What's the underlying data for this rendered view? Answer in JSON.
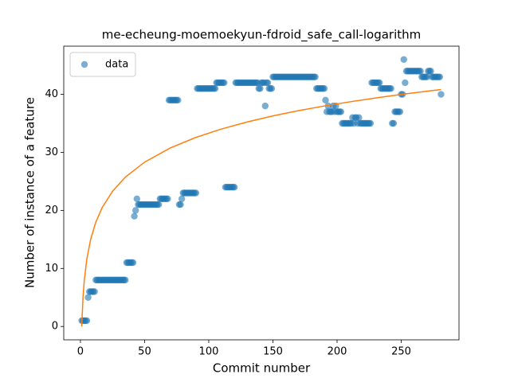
{
  "chart_data": {
    "type": "scatter",
    "title": "me-echeung-moemoekyun-fdroid_safe_call-logarithm",
    "x_label": "Commit number",
    "y_label": "Number of instance of a feature",
    "xlim": [
      -13,
      295
    ],
    "ylim": [
      -2.3,
      48.3
    ],
    "xticks": [
      0,
      50,
      100,
      150,
      200,
      250
    ],
    "yticks": [
      0,
      10,
      20,
      30,
      40
    ],
    "legend": "upper left",
    "series": [
      {
        "name": "data",
        "color": "#1f77b4",
        "type": "scatter",
        "x": [
          1,
          2,
          3,
          4,
          5,
          6,
          7,
          8,
          9,
          10,
          11,
          12,
          13,
          14,
          15,
          16,
          17,
          18,
          19,
          20,
          21,
          22,
          23,
          24,
          25,
          26,
          27,
          28,
          29,
          30,
          31,
          32,
          33,
          34,
          35,
          36,
          37,
          38,
          39,
          40,
          41,
          42,
          43,
          44,
          45,
          46,
          47,
          48,
          49,
          50,
          51,
          52,
          53,
          54,
          55,
          56,
          57,
          58,
          59,
          60,
          61,
          62,
          63,
          64,
          65,
          66,
          67,
          68,
          69,
          70,
          71,
          72,
          73,
          74,
          75,
          76,
          77,
          78,
          79,
          80,
          81,
          82,
          83,
          84,
          85,
          86,
          87,
          88,
          89,
          90,
          91,
          92,
          93,
          94,
          95,
          96,
          97,
          98,
          99,
          100,
          101,
          102,
          103,
          104,
          105,
          106,
          107,
          108,
          109,
          110,
          111,
          112,
          113,
          114,
          115,
          116,
          117,
          118,
          119,
          120,
          121,
          122,
          123,
          124,
          125,
          126,
          127,
          128,
          129,
          130,
          131,
          132,
          133,
          134,
          135,
          136,
          137,
          138,
          139,
          140,
          141,
          142,
          143,
          144,
          145,
          146,
          147,
          148,
          149,
          150,
          151,
          152,
          153,
          154,
          155,
          156,
          157,
          158,
          159,
          160,
          161,
          162,
          163,
          164,
          165,
          166,
          167,
          168,
          169,
          170,
          171,
          172,
          173,
          174,
          175,
          176,
          177,
          178,
          179,
          180,
          181,
          182,
          183,
          184,
          185,
          186,
          187,
          188,
          189,
          190,
          191,
          192,
          193,
          194,
          195,
          196,
          197,
          198,
          199,
          200,
          201,
          202,
          203,
          204,
          205,
          206,
          207,
          208,
          209,
          210,
          211,
          212,
          213,
          214,
          215,
          216,
          217,
          218,
          219,
          220,
          221,
          222,
          223,
          224,
          225,
          226,
          227,
          228,
          229,
          230,
          231,
          232,
          233,
          234,
          235,
          236,
          237,
          238,
          239,
          240,
          241,
          242,
          243,
          244,
          245,
          246,
          247,
          248,
          249,
          250,
          251,
          252,
          253,
          254,
          255,
          256,
          257,
          258,
          259,
          260,
          261,
          262,
          263,
          264,
          265,
          266,
          267,
          268,
          269,
          270,
          271,
          272,
          273,
          274,
          275,
          276,
          277,
          278,
          279,
          280,
          281
        ],
        "values": [
          1,
          1,
          1,
          1,
          1,
          5,
          6,
          6,
          6,
          6,
          6,
          8,
          8,
          8,
          8,
          8,
          8,
          8,
          8,
          8,
          8,
          8,
          8,
          8,
          8,
          8,
          8,
          8,
          8,
          8,
          8,
          8,
          8,
          8,
          8,
          11,
          11,
          11,
          11,
          11,
          11,
          19,
          20,
          22,
          21,
          21,
          21,
          21,
          21,
          21,
          21,
          21,
          21,
          21,
          21,
          21,
          21,
          21,
          21,
          21,
          21,
          22,
          22,
          22,
          22,
          22,
          22,
          22,
          39,
          39,
          39,
          39,
          39,
          39,
          39,
          39,
          21,
          21,
          22,
          23,
          23,
          23,
          23,
          23,
          23,
          23,
          23,
          23,
          23,
          23,
          41,
          41,
          41,
          41,
          41,
          41,
          41,
          41,
          41,
          41,
          41,
          41,
          41,
          41,
          41,
          42,
          42,
          42,
          42,
          42,
          42,
          42,
          24,
          24,
          24,
          24,
          24,
          24,
          24,
          24,
          42,
          42,
          42,
          42,
          42,
          42,
          42,
          42,
          42,
          42,
          42,
          42,
          42,
          42,
          42,
          42,
          42,
          42,
          41,
          41,
          42,
          42,
          42,
          38,
          42,
          42,
          41,
          41,
          41,
          43,
          43,
          43,
          43,
          43,
          43,
          43,
          43,
          43,
          43,
          43,
          43,
          43,
          43,
          43,
          43,
          43,
          43,
          43,
          43,
          43,
          43,
          43,
          43,
          43,
          43,
          43,
          43,
          43,
          43,
          43,
          43,
          43,
          43,
          41,
          41,
          41,
          41,
          41,
          41,
          41,
          39,
          37,
          38,
          37,
          37,
          37,
          38,
          37,
          38,
          37,
          37,
          37,
          37,
          35,
          35,
          35,
          35,
          35,
          35,
          35,
          35,
          36,
          35,
          36,
          36,
          35,
          36,
          35,
          35,
          35,
          35,
          35,
          35,
          35,
          35,
          35,
          42,
          42,
          42,
          42,
          42,
          42,
          42,
          41,
          41,
          41,
          41,
          41,
          41,
          41,
          41,
          41,
          35,
          35,
          37,
          37,
          37,
          37,
          37,
          40,
          40,
          46,
          42,
          44,
          44,
          44,
          44,
          44,
          44,
          44,
          44,
          44,
          44,
          44,
          44,
          43,
          43,
          43,
          43,
          43,
          44,
          44,
          44,
          43,
          43,
          43,
          43,
          43,
          43,
          43,
          40
        ]
      },
      {
        "color": "#ff7f0e",
        "type": "line",
        "x": [
          1,
          2,
          3,
          5,
          8,
          12,
          17,
          25,
          35,
          50,
          70,
          90,
          110,
          130,
          150,
          170,
          190,
          210,
          230,
          250,
          270,
          281
        ],
        "values": [
          0,
          5.02,
          7.95,
          11.65,
          15.05,
          17.99,
          20.51,
          23.3,
          25.74,
          28.32,
          30.76,
          32.58,
          34.03,
          35.24,
          36.28,
          37.19,
          37.99,
          38.71,
          39.37,
          39.98,
          40.54,
          40.82
        ]
      }
    ]
  }
}
